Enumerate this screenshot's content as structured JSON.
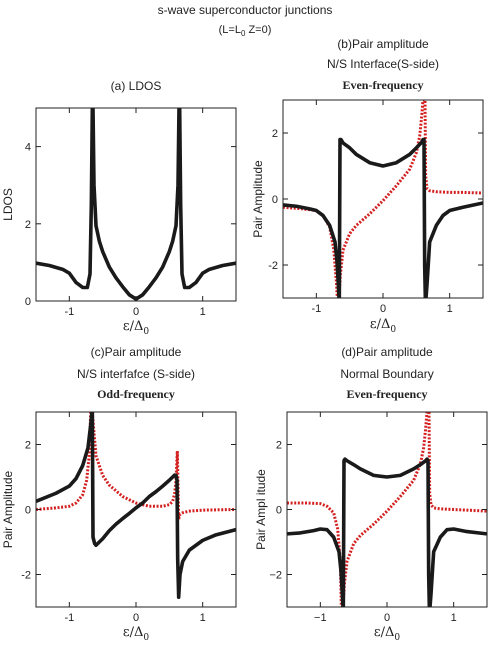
{
  "figure": {
    "title": "s-wave superconductor junctions",
    "subtitle": "(L=L",
    "subtitle_sub": "0",
    "subtitle_tail": " Z=0)"
  },
  "colors": {
    "black_series": "#1a1a1a",
    "red_series": "#d42020",
    "axis": "#222222"
  },
  "chart_data": [
    {
      "id": "a",
      "type": "line",
      "title_lines": [
        "(a) LDOS"
      ],
      "bold_line": "",
      "xlabel": "ε/Δ",
      "xlabel_sub": "0",
      "ylabel": "LDOS",
      "xlim": [
        -1.5,
        1.5
      ],
      "ylim": [
        0,
        5
      ],
      "xticks": [
        -1,
        0,
        1
      ],
      "yticks": [
        0,
        2,
        4
      ],
      "xtick_labels": [
        "-1",
        "0",
        "1"
      ],
      "ytick_labels": [
        "0",
        "2",
        "4"
      ],
      "series": [
        {
          "style": "solid-black",
          "x": [
            -1.5,
            -1.3,
            -1.1,
            -1.0,
            -0.9,
            -0.8,
            -0.73,
            -0.69,
            -0.67,
            -0.655,
            -0.645,
            -0.63,
            -0.6,
            -0.55,
            -0.5,
            -0.4,
            -0.3,
            -0.2,
            -0.1,
            0.0,
            0.1,
            0.2,
            0.3,
            0.4,
            0.5,
            0.55,
            0.6,
            0.63,
            0.645,
            0.655,
            0.67,
            0.69,
            0.73,
            0.8,
            0.9,
            1.0,
            1.1,
            1.3,
            1.5
          ],
          "y": [
            0.98,
            0.92,
            0.82,
            0.72,
            0.48,
            0.35,
            0.35,
            0.7,
            2.5,
            5.0,
            5.0,
            3.0,
            1.95,
            1.55,
            1.28,
            0.88,
            0.6,
            0.37,
            0.16,
            0.05,
            0.16,
            0.37,
            0.6,
            0.88,
            1.28,
            1.55,
            1.95,
            3.0,
            5.0,
            5.0,
            2.5,
            0.7,
            0.35,
            0.35,
            0.48,
            0.72,
            0.82,
            0.92,
            0.98
          ]
        }
      ]
    },
    {
      "id": "b",
      "type": "line",
      "title_lines": [
        "(b)Pair  amplitude",
        "N/S Interface(S-side)"
      ],
      "bold_line": "Even-frequency",
      "xlabel": "ε/Δ",
      "xlabel_sub": "0",
      "ylabel": "Pair Amplitude",
      "xlim": [
        -1.5,
        1.5
      ],
      "ylim": [
        -3,
        3
      ],
      "xticks": [
        -1,
        0,
        1
      ],
      "yticks": [
        -2,
        0,
        2
      ],
      "xtick_labels": [
        "-1",
        "0",
        "1"
      ],
      "ytick_labels": [
        "-2",
        "0",
        "2"
      ],
      "series": [
        {
          "style": "solid-black",
          "x": [
            -1.5,
            -1.3,
            -1.1,
            -1.0,
            -0.9,
            -0.8,
            -0.72,
            -0.69,
            -0.67,
            -0.66,
            -0.655,
            -0.645,
            -0.63,
            -0.6,
            -0.5,
            -0.4,
            -0.2,
            0.0,
            0.2,
            0.4,
            0.5,
            0.58,
            0.6,
            0.615,
            0.625,
            0.635,
            0.645,
            0.66,
            0.7,
            0.8,
            0.9,
            1.0,
            1.2,
            1.5
          ],
          "y": [
            -0.18,
            -0.22,
            -0.3,
            -0.35,
            -0.5,
            -0.8,
            -1.3,
            -1.9,
            -2.6,
            -3.0,
            -3.0,
            1.8,
            1.8,
            1.7,
            1.55,
            1.35,
            1.1,
            1.0,
            1.1,
            1.35,
            1.55,
            1.72,
            1.8,
            1.8,
            -2.0,
            -3.0,
            -3.0,
            -2.6,
            -1.3,
            -0.8,
            -0.5,
            -0.35,
            -0.25,
            -0.12
          ]
        },
        {
          "style": "dotted-red",
          "x": [
            -1.5,
            -1.2,
            -1.0,
            -0.9,
            -0.8,
            -0.74,
            -0.7,
            -0.685,
            -0.675,
            -0.66,
            -0.64,
            -0.6,
            -0.5,
            -0.4,
            -0.2,
            0.0,
            0.2,
            0.4,
            0.5,
            0.55,
            0.58,
            0.6,
            0.62,
            0.63,
            0.64,
            0.66,
            0.7,
            0.8,
            1.0,
            1.2,
            1.5
          ],
          "y": [
            -0.25,
            -0.3,
            -0.35,
            -0.5,
            -0.85,
            -1.5,
            -2.5,
            -3.0,
            -3.0,
            -3.0,
            -2.3,
            -1.55,
            -1.05,
            -0.8,
            -0.45,
            -0.05,
            0.4,
            0.9,
            1.4,
            1.9,
            2.5,
            3.0,
            3.0,
            3.0,
            0.7,
            0.32,
            0.25,
            0.22,
            0.2,
            0.2,
            0.18
          ]
        }
      ]
    },
    {
      "id": "c",
      "type": "line",
      "title_lines": [
        "(c)Pair amplitude",
        "N/S interfafce (S-side)"
      ],
      "bold_line": "Odd-frequency",
      "xlabel": "ε/Δ",
      "xlabel_sub": "0",
      "ylabel": "Pair Amplitude",
      "xlim": [
        -1.5,
        1.5
      ],
      "ylim": [
        -3,
        3
      ],
      "xticks": [
        -1,
        0,
        1
      ],
      "yticks": [
        -2,
        0,
        2
      ],
      "xtick_labels": [
        "-1",
        "0",
        "1"
      ],
      "ytick_labels": [
        "-2",
        "0",
        "2"
      ],
      "series": [
        {
          "style": "solid-black",
          "x": [
            -1.5,
            -1.2,
            -1.0,
            -0.9,
            -0.8,
            -0.72,
            -0.68,
            -0.66,
            -0.655,
            -0.645,
            -0.62,
            -0.6,
            -0.55,
            -0.5,
            -0.4,
            -0.3,
            -0.2,
            -0.1,
            0.0,
            0.1,
            0.2,
            0.3,
            0.4,
            0.5,
            0.55,
            0.58,
            0.6,
            0.615,
            0.625,
            0.64,
            0.66,
            0.7,
            0.8,
            1.0,
            1.2,
            1.5
          ],
          "y": [
            0.25,
            0.5,
            0.72,
            0.95,
            1.35,
            1.9,
            2.6,
            3.0,
            3.0,
            -0.85,
            -1.05,
            -1.1,
            -1.0,
            -0.9,
            -0.65,
            -0.45,
            -0.28,
            -0.12,
            0.05,
            0.2,
            0.4,
            0.55,
            0.72,
            0.9,
            1.0,
            1.06,
            1.05,
            0.9,
            -1.5,
            -2.7,
            -2.0,
            -1.6,
            -1.25,
            -0.95,
            -0.78,
            -0.62
          ]
        },
        {
          "style": "dotted-red",
          "x": [
            -1.5,
            -1.2,
            -1.0,
            -0.9,
            -0.8,
            -0.74,
            -0.7,
            -0.68,
            -0.665,
            -0.655,
            -0.64,
            -0.6,
            -0.5,
            -0.4,
            -0.2,
            0.0,
            0.2,
            0.4,
            0.5,
            0.55,
            0.58,
            0.6,
            0.62,
            0.64,
            0.66,
            0.7,
            0.8,
            1.0,
            1.2,
            1.5
          ],
          "y": [
            0.0,
            0.05,
            0.1,
            0.2,
            0.45,
            0.9,
            1.7,
            3.0,
            3.0,
            3.0,
            2.6,
            1.65,
            1.05,
            0.75,
            0.4,
            0.2,
            0.1,
            0.1,
            0.15,
            0.25,
            0.5,
            0.9,
            1.8,
            -0.3,
            -0.15,
            -0.1,
            -0.05,
            -0.02,
            -0.01,
            0.0
          ]
        }
      ]
    },
    {
      "id": "d",
      "type": "line",
      "title_lines": [
        "(d)Pair amplitude",
        "Normal Boundary"
      ],
      "bold_line": "Even-frequency",
      "xlabel": "ε/Δ",
      "xlabel_sub": "0",
      "ylabel": "Pair  Ampl itude",
      "xlim": [
        -1.5,
        1.5
      ],
      "ylim": [
        -3,
        3
      ],
      "xticks": [
        -1,
        0,
        1
      ],
      "yticks": [
        -2,
        0,
        2
      ],
      "xtick_labels": [
        "−1",
        "0",
        "1"
      ],
      "ytick_labels": [
        "−2",
        "0",
        "2"
      ],
      "series": [
        {
          "style": "solid-black",
          "x": [
            -1.5,
            -1.3,
            -1.1,
            -1.0,
            -0.9,
            -0.8,
            -0.72,
            -0.69,
            -0.67,
            -0.66,
            -0.655,
            -0.645,
            -0.63,
            -0.6,
            -0.5,
            -0.4,
            -0.2,
            0.0,
            0.2,
            0.4,
            0.5,
            0.58,
            0.6,
            0.615,
            0.625,
            0.635,
            0.645,
            0.66,
            0.7,
            0.8,
            0.9,
            1.0,
            1.2,
            1.5
          ],
          "y": [
            -0.75,
            -0.72,
            -0.65,
            -0.6,
            -0.62,
            -0.85,
            -1.3,
            -1.9,
            -2.6,
            -3.0,
            -3.0,
            1.5,
            1.55,
            1.5,
            1.38,
            1.25,
            1.05,
            1.0,
            1.05,
            1.25,
            1.38,
            1.5,
            1.55,
            1.5,
            -2.0,
            -3.0,
            -3.0,
            -2.6,
            -1.3,
            -0.85,
            -0.62,
            -0.6,
            -0.68,
            -0.75
          ]
        },
        {
          "style": "dotted-red",
          "x": [
            -1.5,
            -1.2,
            -1.0,
            -0.9,
            -0.8,
            -0.74,
            -0.7,
            -0.685,
            -0.675,
            -0.66,
            -0.64,
            -0.6,
            -0.5,
            -0.4,
            -0.2,
            0.0,
            0.2,
            0.4,
            0.5,
            0.55,
            0.58,
            0.6,
            0.62,
            0.63,
            0.64,
            0.66,
            0.7,
            0.8,
            1.0,
            1.2,
            1.5
          ],
          "y": [
            0.2,
            0.2,
            0.18,
            0.1,
            -0.1,
            -0.6,
            -1.6,
            -3.0,
            -3.0,
            -3.0,
            -2.3,
            -1.6,
            -1.05,
            -0.8,
            -0.45,
            -0.05,
            0.4,
            0.9,
            1.4,
            1.9,
            2.5,
            3.0,
            3.0,
            3.0,
            0.5,
            0.15,
            0.05,
            0.02,
            0.0,
            -0.02,
            -0.05
          ]
        }
      ]
    }
  ]
}
